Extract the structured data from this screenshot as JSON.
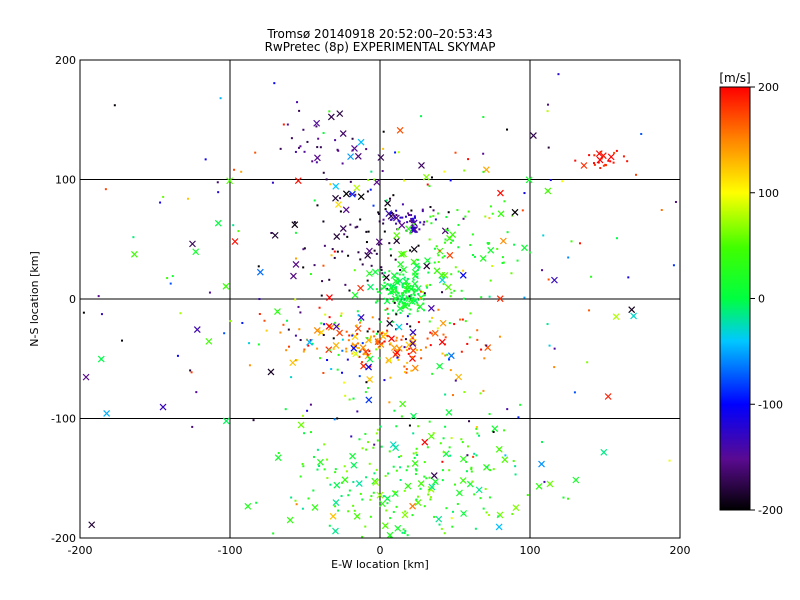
{
  "chart_data": {
    "type": "scatter",
    "title": "Tromsø 20140918 20:52:00–20:53:43",
    "subtitle": "RwPretec (8p) EXPERIMENTAL SKYMAP",
    "xlabel": "E-W location [km]",
    "ylabel": "N-S location [km]",
    "xlim": [
      -200,
      200
    ],
    "ylim": [
      -200,
      200
    ],
    "xticks": [
      "-200",
      "-100",
      "0",
      "100",
      "200"
    ],
    "yticks": [
      "-200",
      "-100",
      "0",
      "100",
      "200"
    ],
    "grid": true,
    "colorbar": {
      "label": "[m/s]",
      "range": [
        -200,
        200
      ],
      "ticks": [
        "200",
        "100",
        "0",
        "-100",
        "-200"
      ],
      "colors": [
        "#000000",
        "#6a0aa0",
        "#0000ff",
        "#00ffff",
        "#00ff00",
        "#ffff00",
        "#ff8000",
        "#ff0000"
      ]
    },
    "marker_types": [
      "dot",
      "cross"
    ],
    "clusters": [
      {
        "cx": 15,
        "cy": 5,
        "sx": 8,
        "sy": 10,
        "n": 140,
        "vmin": -10,
        "vmax": 25,
        "note": "dense cyan-green core"
      },
      {
        "cx": 10,
        "cy": -40,
        "sx": 28,
        "sy": 12,
        "n": 130,
        "vmin": 120,
        "vmax": 210,
        "note": "red band south of origin"
      },
      {
        "cx": 20,
        "cy": 65,
        "sx": 6,
        "sy": 5,
        "n": 45,
        "vmin": -160,
        "vmax": -110,
        "note": "blue patch"
      },
      {
        "cx": -15,
        "cy": 50,
        "sx": 25,
        "sy": 25,
        "n": 90,
        "vmin": -210,
        "vmax": -150,
        "note": "black/purple north"
      },
      {
        "cx": 50,
        "cy": 40,
        "sx": 25,
        "sy": 22,
        "n": 90,
        "vmin": 0,
        "vmax": 60,
        "note": "green north-east"
      },
      {
        "cx": 25,
        "cy": -150,
        "sx": 45,
        "sy": 30,
        "n": 230,
        "vmin": -20,
        "vmax": 70,
        "note": "green/cyan south"
      },
      {
        "cx": -35,
        "cy": 130,
        "sx": 15,
        "sy": 12,
        "n": 30,
        "vmin": -180,
        "vmax": -140,
        "note": "purple cluster north"
      },
      {
        "cx": 150,
        "cy": 115,
        "sx": 8,
        "sy": 4,
        "n": 25,
        "vmin": 170,
        "vmax": 210,
        "note": "red cluster north-east"
      },
      {
        "cx": -30,
        "cy": -30,
        "sx": 30,
        "sy": 20,
        "n": 80,
        "vmin": -210,
        "vmax": 210,
        "note": "mixed west"
      },
      {
        "cx": 0,
        "cy": 0,
        "sx": 110,
        "sy": 110,
        "n": 260,
        "vmin": -210,
        "vmax": 210,
        "note": "sparse scatter"
      }
    ]
  }
}
